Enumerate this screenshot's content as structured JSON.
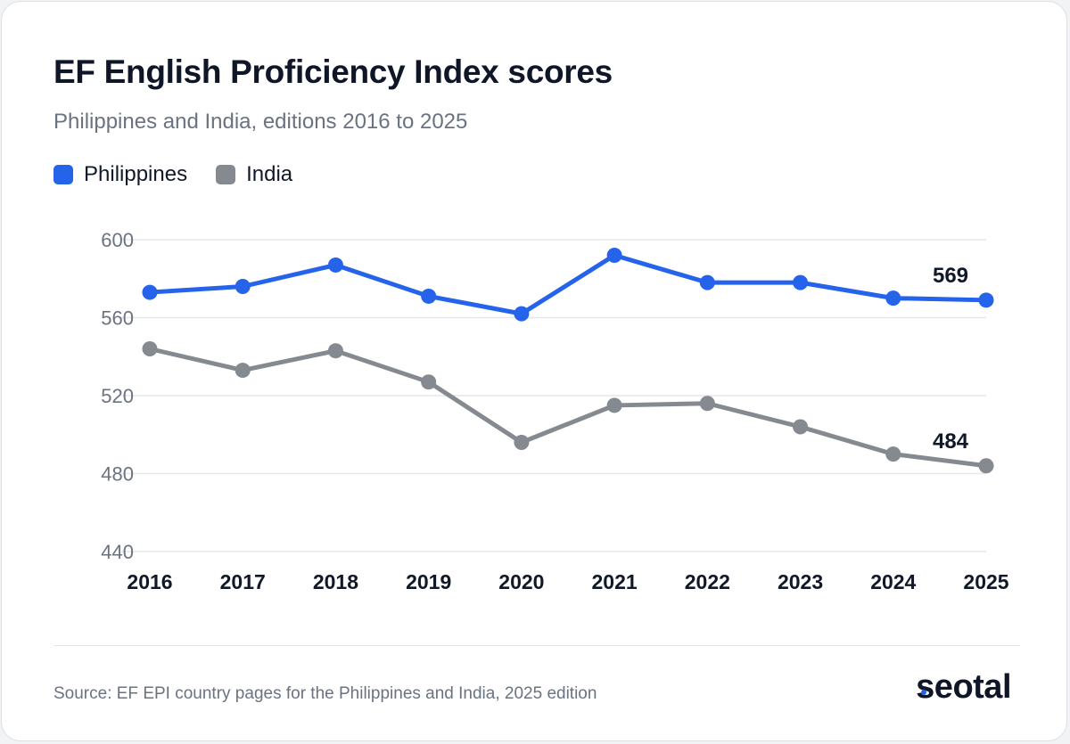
{
  "chart_data": {
    "type": "line",
    "title": "EF English Proficiency Index scores",
    "subtitle": "Philippines and India, editions 2016 to 2025",
    "categories": [
      "2016",
      "2017",
      "2018",
      "2019",
      "2020",
      "2021",
      "2022",
      "2023",
      "2024",
      "2025"
    ],
    "series": [
      {
        "name": "Philippines",
        "color": "#2563eb",
        "values": [
          573,
          576,
          587,
          571,
          562,
          592,
          578,
          578,
          570,
          569
        ]
      },
      {
        "name": "India",
        "color": "#858990",
        "values": [
          544,
          533,
          543,
          527,
          496,
          515,
          516,
          504,
          490,
          484
        ]
      }
    ],
    "end_labels": [
      "569",
      "484"
    ],
    "yticks": [
      "600",
      "560",
      "520",
      "480",
      "440"
    ],
    "ylim": [
      440,
      600
    ],
    "grid": true,
    "legend_position": "top-left"
  },
  "footer": {
    "source": "Source: EF EPI country pages for the Philippines and India, 2025 edition",
    "brand": "seotal",
    "brand_accent": "#2563eb"
  }
}
